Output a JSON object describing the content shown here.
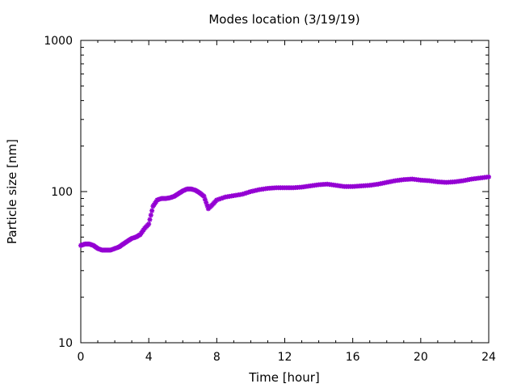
{
  "chart_data": {
    "type": "scatter",
    "title": "Modes location (3/19/19)",
    "xlabel": "Time [hour]",
    "ylabel": "Particle size [nm]",
    "xlim": [
      0,
      24
    ],
    "ylim": [
      10,
      1000
    ],
    "yscale": "log",
    "x_ticks": [
      "0",
      "4",
      "8",
      "12",
      "16",
      "20",
      "24"
    ],
    "y_ticks": [
      "10",
      "100",
      "1000"
    ],
    "grid": false,
    "legend": "none",
    "marker_color": "#9400d3",
    "marker": "star",
    "series": [
      {
        "x": [
          0.0,
          0.25,
          0.5,
          0.75,
          1.0,
          1.25,
          1.5,
          1.75,
          2.0,
          2.25,
          2.5,
          2.75,
          3.0,
          3.25,
          3.5,
          3.75,
          4.0,
          4.25,
          4.5,
          4.75,
          5.0,
          5.25,
          5.5,
          5.75,
          6.0,
          6.25,
          6.5,
          6.75,
          7.0,
          7.25,
          7.5,
          7.75,
          8.0,
          8.5,
          9.0,
          9.5,
          10.0,
          10.5,
          11.0,
          11.5,
          12.0,
          12.5,
          13.0,
          13.5,
          14.0,
          14.5,
          15.0,
          15.5,
          16.0,
          16.5,
          17.0,
          17.5,
          18.0,
          18.5,
          19.0,
          19.5,
          20.0,
          20.5,
          21.0,
          21.5,
          22.0,
          22.5,
          23.0,
          23.5,
          24.0
        ],
        "y": [
          44,
          45,
          45,
          44,
          42,
          41,
          41,
          41,
          42,
          43,
          45,
          47,
          49,
          50,
          52,
          57,
          61,
          80,
          88,
          90,
          90,
          91,
          93,
          97,
          101,
          104,
          104,
          102,
          98,
          93,
          77,
          82,
          88,
          92,
          94,
          96,
          100,
          103,
          105,
          106,
          106,
          106,
          107,
          109,
          111,
          112,
          110,
          108,
          108,
          109,
          110,
          112,
          115,
          118,
          120,
          121,
          119,
          118,
          116,
          115,
          116,
          118,
          121,
          123,
          125
        ]
      }
    ]
  }
}
